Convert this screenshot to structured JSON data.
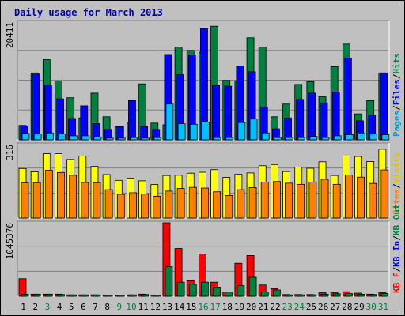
{
  "chart_data": {
    "type": "bar",
    "title": "Daily usage for March 2013",
    "categories": [
      "1",
      "2",
      "3",
      "4",
      "5",
      "6",
      "7",
      "8",
      "9",
      "10",
      "11",
      "12",
      "13",
      "14",
      "15",
      "16",
      "17",
      "18",
      "19",
      "20",
      "21",
      "22",
      "23",
      "24",
      "25",
      "26",
      "27",
      "28",
      "29",
      "30",
      "31"
    ],
    "weekend_days": [
      "3",
      "9",
      "10",
      "16",
      "17",
      "23",
      "24",
      "30",
      "31"
    ],
    "panels": [
      {
        "name": "hits-files-pages",
        "ymax_label": "20411",
        "ylim": [
          0,
          20411
        ],
        "legend": [
          "Pages",
          "/",
          "Files",
          "/",
          "Hits"
        ],
        "series": [
          {
            "name": "Hits",
            "color": "#008040",
            "values": [
              2500,
              11600,
              13900,
              10200,
              7300,
              3800,
              8100,
              4000,
              2300,
              3000,
              9700,
              2900,
              2600,
              16100,
              15500,
              15200,
              19700,
              10300,
              10200,
              17700,
              16100,
              4000,
              6200,
              9600,
              10100,
              7500,
              12700,
              16600,
              4500,
              6800,
              11600
            ]
          },
          {
            "name": "Files",
            "color": "#0000ff",
            "values": [
              2400,
              11400,
              9500,
              7100,
              3700,
              5900,
              2800,
              1800,
              2300,
              6800,
              2300,
              1800,
              14800,
              11300,
              14700,
              19300,
              9400,
              9300,
              12800,
              11800,
              5700,
              1900,
              3800,
              7000,
              8100,
              6400,
              8300,
              14200,
              3300,
              4300,
              11600
            ]
          },
          {
            "name": "Pages",
            "color": "#00c0ff",
            "values": [
              1100,
              1000,
              1200,
              1000,
              700,
              700,
              500,
              300,
              300,
              400,
              300,
              400,
              6200,
              2800,
              2700,
              3100,
              400,
              400,
              3000,
              3600,
              1200,
              400,
              400,
              400,
              600,
              400,
              700,
              900,
              1200,
              1000,
              900
            ]
          }
        ]
      },
      {
        "name": "visits-sites",
        "ymax_label": "316",
        "ylim": [
          0,
          316
        ],
        "legend": [
          "Sites",
          "/",
          "Visits"
        ],
        "series": [
          {
            "name": "Visits",
            "color": "#ffff00",
            "values": [
              213,
              199,
              277,
              277,
              252,
              267,
              222,
              187,
              162,
              172,
              160,
              144,
              183,
              184,
              193,
              197,
              208,
              175,
              188,
              194,
              225,
              230,
              200,
              219,
              214,
              242,
              183,
              267,
              265,
              243,
              296
            ]
          },
          {
            "name": "Sites",
            "color": "#ff8000",
            "values": [
              151,
              152,
              206,
              196,
              184,
              153,
              152,
              122,
              102,
              109,
              103,
              94,
              116,
              127,
              132,
              129,
              113,
              97,
              122,
              131,
              155,
              157,
              150,
              145,
              155,
              167,
              145,
              185,
              176,
              149,
              207
            ]
          }
        ]
      },
      {
        "name": "kbf-kbin-kbout",
        "ymax_label": "1045376",
        "ylim": [
          0,
          1045376
        ],
        "legend": [
          "KB F",
          "/",
          "KB In",
          "/",
          "KB Out"
        ],
        "series": [
          {
            "name": "KB F",
            "color": "#ff0000",
            "values": [
              250000,
              30000,
              30000,
              30000,
              20000,
              20000,
              20000,
              15000,
              15000,
              20000,
              30000,
              15000,
              1045376,
              680000,
              220000,
              600000,
              200000,
              60000,
              470000,
              580000,
              160000,
              110000,
              25000,
              25000,
              25000,
              50000,
              50000,
              65000,
              45000,
              30000,
              50000
            ]
          },
          {
            "name": "KB In",
            "color": "#008040",
            "values": [
              30000,
              30000,
              30000,
              25000,
              20000,
              20000,
              20000,
              15000,
              15000,
              20000,
              25000,
              15000,
              420000,
              200000,
              170000,
              200000,
              130000,
              60000,
              150000,
              270000,
              60000,
              90000,
              20000,
              20000,
              20000,
              30000,
              35000,
              40000,
              30000,
              25000,
              40000
            ]
          }
        ]
      }
    ]
  }
}
